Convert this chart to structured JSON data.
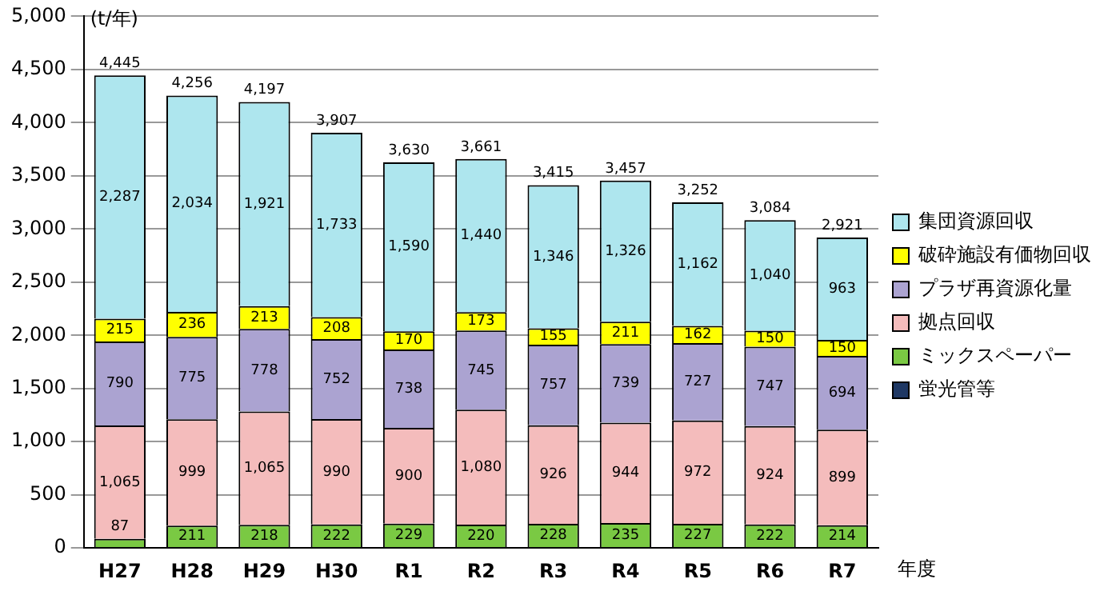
{
  "chart_data": {
    "type": "bar",
    "stacked": true,
    "ylabel": "(t/年)",
    "xlabel": "年度",
    "categories": [
      "H27",
      "H28",
      "H29",
      "H30",
      "R1",
      "R2",
      "R3",
      "R4",
      "R5",
      "R6",
      "R7"
    ],
    "ylim": [
      0,
      5000
    ],
    "yticks": [
      0,
      500,
      {
        "value": 1000,
        "label": "1,000"
      },
      {
        "value": 1500,
        "label": "1,500"
      },
      {
        "value": 2000,
        "label": "2,000"
      },
      {
        "value": 2500,
        "label": "2,500"
      },
      {
        "value": 3000,
        "label": "3,000"
      },
      {
        "value": 3500,
        "label": "3,500"
      },
      {
        "value": 4000,
        "label": "4,000"
      },
      {
        "value": 4500,
        "label": "4,500"
      },
      {
        "value": 5000,
        "label": "5,000"
      }
    ],
    "grid": "y",
    "legend": "right",
    "series": [
      {
        "name": "蛍光管等",
        "color": "#1f3864",
        "values": [
          null,
          null,
          null,
          null,
          null,
          null,
          null,
          null,
          null,
          null,
          null
        ]
      },
      {
        "name": "ミックスペーパー",
        "color": "#7ac943",
        "values": [
          87,
          211,
          218,
          222,
          229,
          220,
          228,
          235,
          227,
          222,
          214
        ],
        "value_labels": [
          "87",
          "211",
          "218",
          "222",
          "229",
          "220",
          "228",
          "235",
          "227",
          "222",
          "214"
        ]
      },
      {
        "name": "拠点回収",
        "color": "#f4bcbc",
        "values": [
          1065,
          999,
          1065,
          990,
          900,
          1080,
          926,
          944,
          972,
          924,
          899
        ],
        "value_labels": [
          "1,065",
          "999",
          "1,065",
          "990",
          "900",
          "1,080",
          "926",
          "944",
          "972",
          "924",
          "899"
        ]
      },
      {
        "name": "プラザ再資源化量",
        "color": "#aba3d1",
        "values": [
          790,
          775,
          778,
          752,
          738,
          745,
          757,
          739,
          727,
          747,
          694
        ],
        "value_labels": [
          "790",
          "775",
          "778",
          "752",
          "738",
          "745",
          "757",
          "739",
          "727",
          "747",
          "694"
        ]
      },
      {
        "name": "破砕施設有価物回収",
        "color": "#ffff00",
        "values": [
          215,
          236,
          213,
          208,
          170,
          173,
          155,
          211,
          162,
          150,
          150
        ],
        "value_labels": [
          "215",
          "236",
          "213",
          "208",
          "170",
          "173",
          "155",
          "211",
          "162",
          "150",
          "150"
        ]
      },
      {
        "name": "集団資源回収",
        "color": "#aee6ee",
        "values": [
          2287,
          2034,
          1921,
          1733,
          1590,
          1440,
          1346,
          1326,
          1162,
          1040,
          963
        ],
        "value_labels": [
          "2,287",
          "2,034",
          "1,921",
          "1,733",
          "1,590",
          "1,440",
          "1,346",
          "1,326",
          "1,162",
          "1,040",
          "963"
        ]
      }
    ],
    "totals": [
      "4,445",
      "4,256",
      "4,197",
      "3,907",
      "3,630",
      "3,661",
      "3,415",
      "3,457",
      "3,252",
      "3,084",
      "2,921"
    ]
  }
}
